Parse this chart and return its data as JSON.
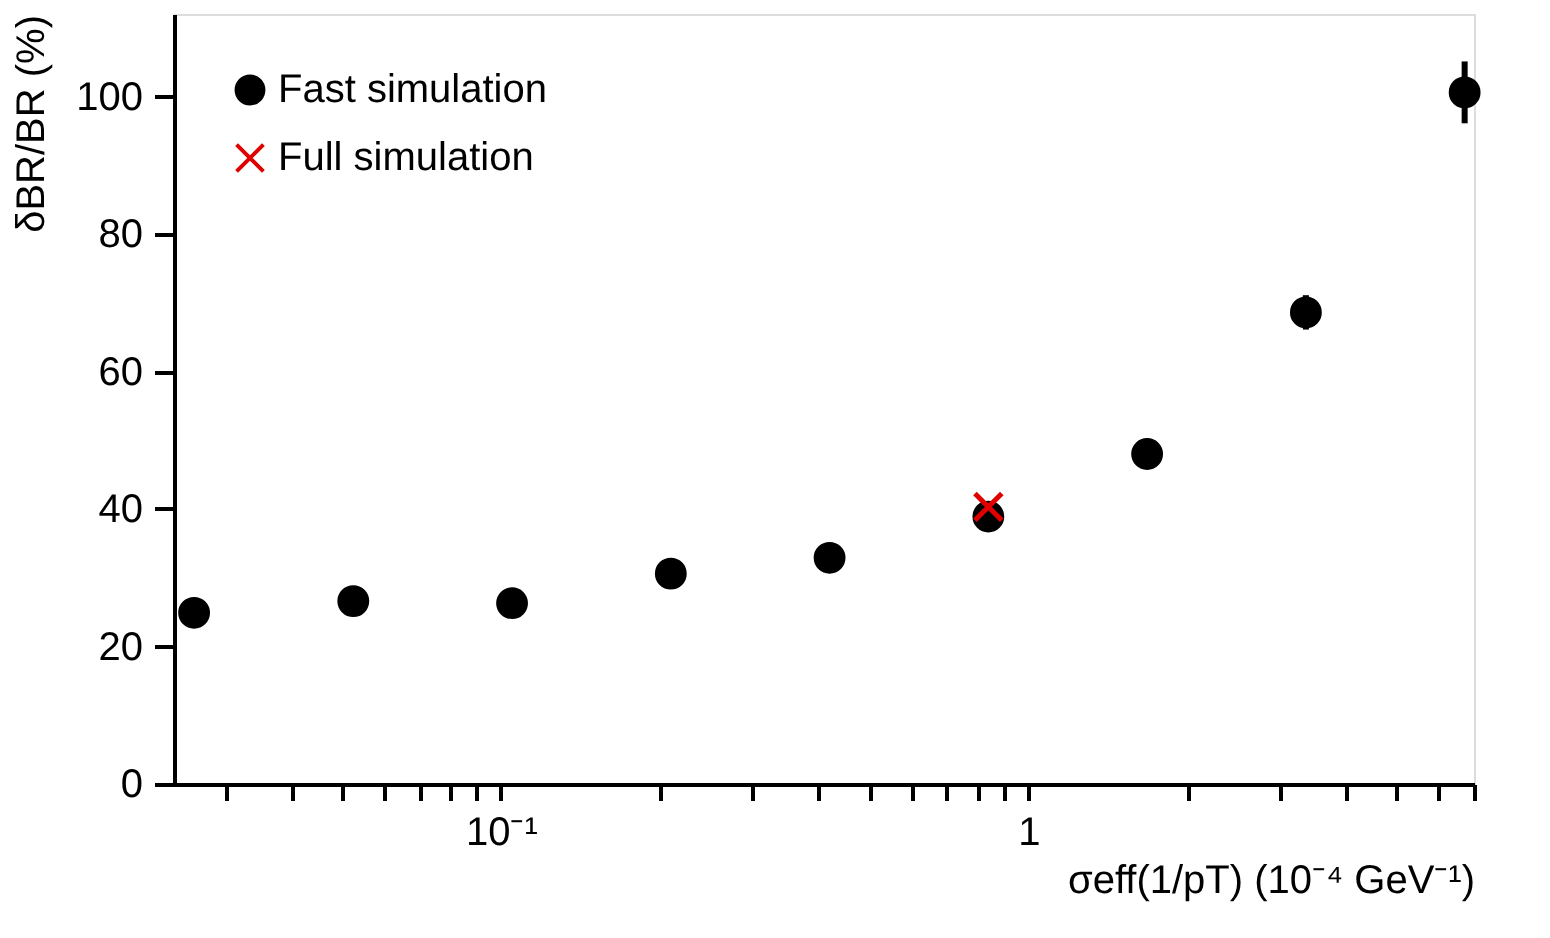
{
  "chart_data": {
    "type": "scatter",
    "xlabel": "σeff(1/pT) (10⁻⁴ GeV⁻¹)",
    "ylabel": "δBR/BR (%)",
    "log": "x",
    "xlim": [
      0.024,
      7.0
    ],
    "ylim": [
      0,
      112
    ],
    "xticks": [
      {
        "value": 0.03,
        "label": null
      },
      {
        "value": 0.04,
        "label": null
      },
      {
        "value": 0.05,
        "label": null
      },
      {
        "value": 0.06,
        "label": null
      },
      {
        "value": 0.07,
        "label": null
      },
      {
        "value": 0.08,
        "label": null
      },
      {
        "value": 0.09,
        "label": null
      },
      {
        "value": 0.1,
        "label": "10⁻¹"
      },
      {
        "value": 0.2,
        "label": null
      },
      {
        "value": 0.3,
        "label": null
      },
      {
        "value": 0.4,
        "label": null
      },
      {
        "value": 0.5,
        "label": null
      },
      {
        "value": 0.6,
        "label": null
      },
      {
        "value": 0.7,
        "label": null
      },
      {
        "value": 0.8,
        "label": null
      },
      {
        "value": 0.9,
        "label": null
      },
      {
        "value": 1,
        "label": "1"
      },
      {
        "value": 2,
        "label": null
      },
      {
        "value": 3,
        "label": null
      },
      {
        "value": 4,
        "label": null
      },
      {
        "value": 5,
        "label": null
      },
      {
        "value": 6,
        "label": null
      },
      {
        "value": 7,
        "label": null
      }
    ],
    "yticks": [
      0,
      20,
      40,
      60,
      80,
      100
    ],
    "grid": false,
    "legend": "top left",
    "series": [
      {
        "name": "Fast simulation",
        "color": "#000000",
        "marker": "circle",
        "x": [
          0.0262,
          0.0525,
          0.105,
          0.21,
          0.42,
          0.84,
          1.68,
          3.36,
          6.72
        ],
        "values": [
          24.9,
          26.6,
          26.3,
          30.6,
          32.9,
          38.9,
          48.0,
          68.6,
          100.6
        ],
        "errors": [
          null,
          null,
          null,
          null,
          null,
          null,
          null,
          2.5,
          4.5
        ]
      },
      {
        "name": "Full simulation",
        "color": "#e00000",
        "marker": "cross",
        "x": [
          0.84
        ],
        "values": [
          40.3
        ]
      }
    ]
  }
}
